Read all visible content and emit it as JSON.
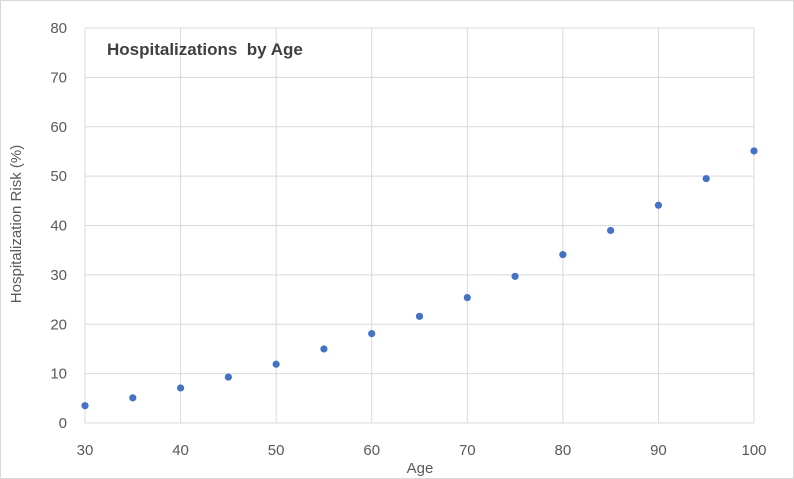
{
  "chart_data": {
    "type": "scatter",
    "title": "Hospitalizations  by Age",
    "xlabel": "Age",
    "ylabel": "Hospitalization Risk (%)",
    "xlim": [
      30,
      100
    ],
    "ylim": [
      0,
      80
    ],
    "xticks": [
      30,
      40,
      50,
      60,
      70,
      80,
      90,
      100
    ],
    "yticks": [
      0,
      10,
      20,
      30,
      40,
      50,
      60,
      70,
      80
    ],
    "grid": true,
    "legend": "none",
    "series": [
      {
        "color": "#4472c4",
        "x": [
          30,
          35,
          40,
          45,
          50,
          55,
          60,
          65,
          70,
          75,
          80,
          85,
          90,
          95,
          100
        ],
        "y": [
          3.5,
          5.1,
          7.1,
          9.3,
          11.9,
          15.0,
          18.1,
          21.6,
          25.4,
          29.7,
          34.1,
          39.0,
          44.1,
          49.5,
          55.1
        ]
      }
    ]
  }
}
